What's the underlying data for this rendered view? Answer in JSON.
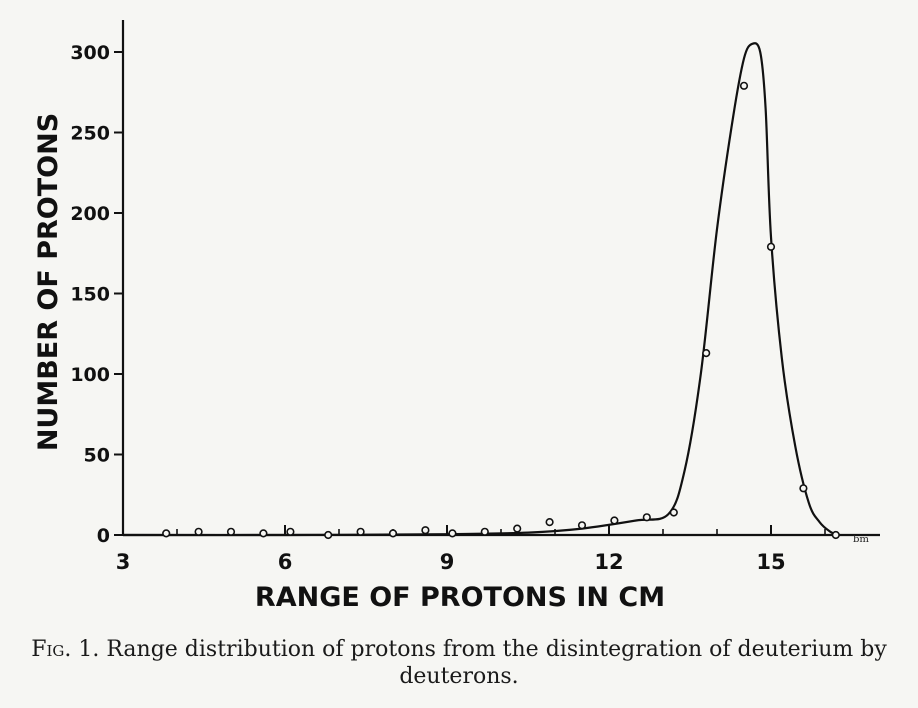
{
  "chart_data": {
    "type": "line",
    "xlabel": "RANGE OF PROTONS IN CM",
    "ylabel": "NUMBER OF PROTONS",
    "xlim": [
      3,
      17.2
    ],
    "ylim": [
      0,
      320
    ],
    "x_ticks": [
      3,
      6,
      9,
      12,
      15
    ],
    "y_ticks": [
      0,
      50,
      100,
      150,
      200,
      250,
      300
    ],
    "x_tick_labels": [
      "3",
      "6",
      "9",
      "12",
      "15"
    ],
    "y_tick_labels": [
      "0",
      "50",
      "100",
      "150",
      "200",
      "250",
      "300"
    ],
    "grid": false,
    "axis_end_mark": "ᵇᵐ",
    "points": {
      "x": [
        3.8,
        4.4,
        5.0,
        5.6,
        6.1,
        6.8,
        7.4,
        8.0,
        8.6,
        9.1,
        9.7,
        10.3,
        10.9,
        11.5,
        12.1,
        12.7,
        13.2,
        13.8,
        14.5,
        15.0,
        15.6,
        16.2
      ],
      "y": [
        1,
        2,
        2,
        1,
        2,
        0,
        2,
        1,
        3,
        1,
        2,
        4,
        8,
        6,
        9,
        11,
        14,
        113,
        279,
        179,
        29,
        0
      ]
    },
    "curve": {
      "x": [
        3.0,
        6.0,
        9.0,
        10.5,
        11.5,
        12.5,
        13.1,
        13.4,
        13.7,
        14.0,
        14.3,
        14.5,
        14.65,
        14.8,
        14.9,
        15.0,
        15.2,
        15.45,
        15.7,
        15.9,
        16.1,
        16.25
      ],
      "y": [
        0,
        0,
        0.5,
        1.5,
        4,
        9,
        13,
        40,
        100,
        190,
        260,
        296,
        305,
        300,
        265,
        185,
        110,
        55,
        20,
        8,
        2,
        0
      ]
    }
  },
  "caption": {
    "label": "Fig. 1.",
    "text": "Range distribution of protons from the disintegration of deuterium by deuterons."
  }
}
